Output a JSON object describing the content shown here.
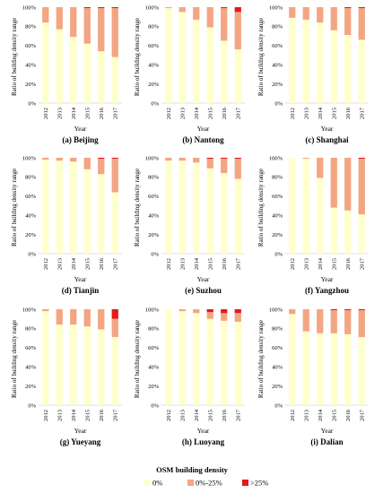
{
  "chart_data": [
    {
      "type": "bar",
      "stacked": true,
      "caption": "(a) Beijing",
      "xlabel": "Year",
      "ylabel": "Ratio of building density range",
      "categories": [
        "2012",
        "2013",
        "2014",
        "2015",
        "2016",
        "2017"
      ],
      "y_ticks": [
        "0%",
        "20%",
        "40%",
        "60%",
        "80%",
        "100%"
      ],
      "ylim": [
        0,
        100
      ],
      "series": [
        {
          "name": "0%",
          "values": [
            84,
            77,
            69,
            62,
            54,
            48
          ]
        },
        {
          "name": "0%-25%",
          "values": [
            16,
            23,
            31,
            37,
            45,
            51
          ]
        },
        {
          "name": ">25%",
          "values": [
            0,
            0,
            0,
            1,
            1,
            1
          ]
        }
      ]
    },
    {
      "type": "bar",
      "stacked": true,
      "caption": "(b) Nantong",
      "xlabel": "Year",
      "ylabel": "Ratio of building density range",
      "categories": [
        "2012",
        "2013",
        "2014",
        "2015",
        "2016",
        "2017"
      ],
      "y_ticks": [
        "0%",
        "20%",
        "40%",
        "60%",
        "80%",
        "100%"
      ],
      "ylim": [
        0,
        100
      ],
      "series": [
        {
          "name": "0%",
          "values": [
            99,
            95,
            87,
            79,
            65,
            56
          ]
        },
        {
          "name": "0%-25%",
          "values": [
            1,
            5,
            13,
            21,
            34,
            39
          ]
        },
        {
          "name": ">25%",
          "values": [
            0,
            0,
            0,
            0,
            1,
            5
          ]
        }
      ]
    },
    {
      "type": "bar",
      "stacked": true,
      "caption": "(c) Shanghai",
      "xlabel": "Year",
      "ylabel": "Ratio of building density range",
      "categories": [
        "2012",
        "2013",
        "2014",
        "2015",
        "2016",
        "2017"
      ],
      "y_ticks": [
        "0%",
        "20%",
        "40%",
        "60%",
        "80%",
        "100%"
      ],
      "ylim": [
        0,
        100
      ],
      "series": [
        {
          "name": "0%",
          "values": [
            89,
            87,
            84,
            76,
            71,
            66
          ]
        },
        {
          "name": "0%-25%",
          "values": [
            11,
            13,
            16,
            24,
            28,
            33
          ]
        },
        {
          "name": ">25%",
          "values": [
            0,
            0,
            0,
            0,
            1,
            1
          ]
        }
      ]
    },
    {
      "type": "bar",
      "stacked": true,
      "caption": "(d) Tianjin",
      "xlabel": "Year",
      "ylabel": "Ratio of building density range",
      "categories": [
        "2012",
        "2013",
        "2014",
        "2015",
        "2016",
        "2017"
      ],
      "y_ticks": [
        "0%",
        "20%",
        "40%",
        "60%",
        "80%",
        "100%"
      ],
      "ylim": [
        0,
        100
      ],
      "series": [
        {
          "name": "0%",
          "values": [
            98,
            97,
            96,
            88,
            83,
            64
          ]
        },
        {
          "name": "0%-25%",
          "values": [
            2,
            3,
            4,
            12,
            16,
            35
          ]
        },
        {
          "name": ">25%",
          "values": [
            0,
            0,
            0,
            0,
            1,
            1
          ]
        }
      ]
    },
    {
      "type": "bar",
      "stacked": true,
      "caption": "(e) Suzhou",
      "xlabel": "Year",
      "ylabel": "Ratio of building density range",
      "categories": [
        "2012",
        "2013",
        "2014",
        "2015",
        "2016",
        "2017"
      ],
      "y_ticks": [
        "0%",
        "20%",
        "40%",
        "60%",
        "80%",
        "100%"
      ],
      "ylim": [
        0,
        100
      ],
      "series": [
        {
          "name": "0%",
          "values": [
            97,
            97,
            95,
            89,
            84,
            78
          ]
        },
        {
          "name": "0%-25%",
          "values": [
            3,
            3,
            5,
            10,
            15,
            21
          ]
        },
        {
          "name": ">25%",
          "values": [
            0,
            0,
            0,
            1,
            1,
            1
          ]
        }
      ]
    },
    {
      "type": "bar",
      "stacked": true,
      "caption": "(f) Yangzhou",
      "xlabel": "Year",
      "ylabel": "Ratio of building density range",
      "categories": [
        "2012",
        "2013",
        "2014",
        "2015",
        "2016",
        "2017"
      ],
      "y_ticks": [
        "0%",
        "20%",
        "40%",
        "60%",
        "80%",
        "100%"
      ],
      "ylim": [
        0,
        100
      ],
      "series": [
        {
          "name": "0%",
          "values": [
            100,
            99,
            79,
            48,
            45,
            41
          ]
        },
        {
          "name": "0%-25%",
          "values": [
            0,
            1,
            21,
            52,
            55,
            58
          ]
        },
        {
          "name": ">25%",
          "values": [
            0,
            0,
            0,
            0,
            0,
            1
          ]
        }
      ]
    },
    {
      "type": "bar",
      "stacked": true,
      "caption": "(g) Yueyang",
      "xlabel": "Year",
      "ylabel": "Ratio of building density range",
      "categories": [
        "2012",
        "2013",
        "2014",
        "2015",
        "2016",
        "2017"
      ],
      "y_ticks": [
        "0%",
        "20%",
        "40%",
        "60%",
        "80%",
        "100%"
      ],
      "ylim": [
        0,
        100
      ],
      "series": [
        {
          "name": "0%",
          "values": [
            98,
            84,
            84,
            82,
            79,
            71
          ]
        },
        {
          "name": "0%-25%",
          "values": [
            2,
            16,
            16,
            18,
            21,
            19
          ]
        },
        {
          "name": ">25%",
          "values": [
            0,
            0,
            0,
            0,
            0,
            10
          ]
        }
      ]
    },
    {
      "type": "bar",
      "stacked": true,
      "caption": "(h) Luoyang",
      "xlabel": "Year",
      "ylabel": "Ratio of building density range",
      "categories": [
        "2012",
        "2013",
        "2014",
        "2015",
        "2016",
        "2017"
      ],
      "y_ticks": [
        "0%",
        "20%",
        "40%",
        "60%",
        "80%",
        "100%"
      ],
      "ylim": [
        0,
        100
      ],
      "series": [
        {
          "name": "0%",
          "values": [
            100,
            98,
            96,
            90,
            88,
            87
          ]
        },
        {
          "name": "0%-25%",
          "values": [
            0,
            2,
            4,
            7,
            8,
            9
          ]
        },
        {
          "name": ">25%",
          "values": [
            0,
            0,
            0,
            3,
            4,
            4
          ]
        }
      ]
    },
    {
      "type": "bar",
      "stacked": true,
      "caption": "(i) Dalian",
      "xlabel": "Year",
      "ylabel": "Ratio of building density range",
      "categories": [
        "2012",
        "2013",
        "2014",
        "2015",
        "2016",
        "2017"
      ],
      "y_ticks": [
        "0%",
        "20%",
        "40%",
        "60%",
        "80%",
        "100%"
      ],
      "ylim": [
        0,
        100
      ],
      "series": [
        {
          "name": "0%",
          "values": [
            95,
            77,
            75,
            75,
            74,
            71
          ]
        },
        {
          "name": "0%-25%",
          "values": [
            5,
            23,
            25,
            24,
            25,
            28
          ]
        },
        {
          "name": ">25%",
          "values": [
            0,
            0,
            0,
            1,
            1,
            1
          ]
        }
      ]
    }
  ],
  "legend": {
    "title": "OSM building density",
    "items": [
      {
        "label": "0%",
        "color": "#ffffcc"
      },
      {
        "label": "0%-25%",
        "color": "#f4a582"
      },
      {
        "label": ">25%",
        "color": "#e31a1c"
      }
    ]
  }
}
